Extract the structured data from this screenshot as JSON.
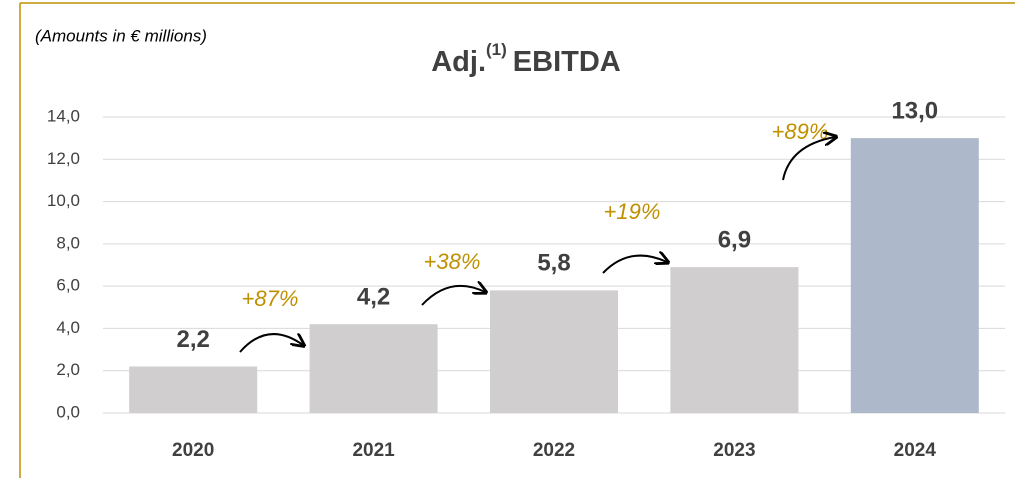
{
  "chart_data": {
    "type": "bar",
    "title": [
      "Adj.",
      "(1)",
      "EBITDA"
    ],
    "subtitle": "(Amounts in € millions)",
    "categories": [
      "2020",
      "2021",
      "2022",
      "2023",
      "2024"
    ],
    "values": [
      2.2,
      4.2,
      5.8,
      6.9,
      13.0
    ],
    "value_labels": [
      "2,2",
      "4,2",
      "5,8",
      "6,9",
      "13,0"
    ],
    "colors": [
      "#d0cece",
      "#d0cece",
      "#d0cece",
      "#d0cece",
      "#adb9ca"
    ],
    "ylim": [
      0,
      14
    ],
    "yticks": [
      {
        "value": 0,
        "label": "0,0"
      },
      {
        "value": 2,
        "label": "2,0"
      },
      {
        "value": 4,
        "label": "4,0"
      },
      {
        "value": 6,
        "label": "6,0"
      },
      {
        "value": 8,
        "label": "8,0"
      },
      {
        "value": 10,
        "label": "10,0"
      },
      {
        "value": 12,
        "label": "12,0"
      },
      {
        "value": 14,
        "label": "14,0"
      }
    ],
    "grid": true,
    "annotations": [
      "+87%",
      "+38%",
      "+19%",
      "+89%"
    ]
  }
}
